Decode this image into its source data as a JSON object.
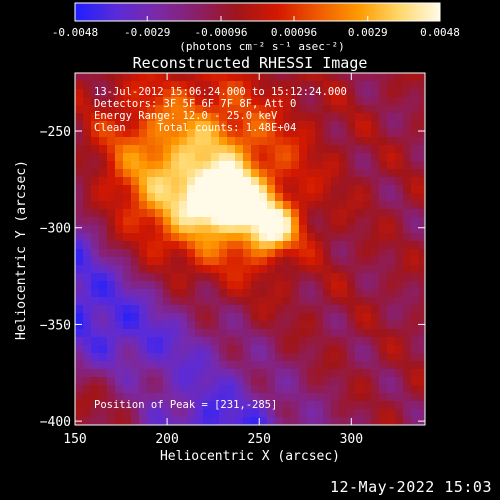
{
  "colors": {
    "background": "#000000",
    "foreground": "#ffffff",
    "colormap": [
      "#1f1fff",
      "#5a2bd9",
      "#7a2aa8",
      "#8a1f6a",
      "#a0151a",
      "#d41800",
      "#f05a00",
      "#ff9a00",
      "#ffd86b",
      "#fffbe8"
    ]
  },
  "colorbar": {
    "tick_labels": [
      "-0.0048",
      "-0.0029",
      "-0.00096",
      "0.00096",
      "0.0029",
      "0.0048"
    ],
    "unit_label": "(photons cm⁻² s⁻¹ asec⁻²)",
    "range": [
      -0.0048,
      0.0048
    ]
  },
  "chart_data": {
    "type": "heatmap",
    "title": "Reconstructed RHESSI Image",
    "xlabel": "Heliocentric X (arcsec)",
    "ylabel": "Heliocentric Y (arcsec)",
    "xlim": [
      150,
      340
    ],
    "ylim": [
      -402,
      -220
    ],
    "x_ticks": [
      150,
      200,
      250,
      300
    ],
    "x_tick_labels": [
      "150",
      "200",
      "250",
      "300"
    ],
    "y_ticks": [
      -250,
      -300,
      -350,
      -400
    ],
    "y_tick_labels": [
      "−250",
      "−300",
      "−350",
      "−400"
    ],
    "annotations": [
      "13-Jul-2012 15:06:24.000 to 15:12:24.000",
      "Detectors: 3F 5F 6F 7F 8F, Att 0",
      "Energy Range: 12.0 - 25.0 keV",
      "Clean     Total counts: 1.48E+04"
    ],
    "peak_label": "Position of Peak = [231,-285]",
    "peak_position": [
      231,
      -285
    ],
    "grid": false
  },
  "footer_date": "12-May-2022 15:03"
}
